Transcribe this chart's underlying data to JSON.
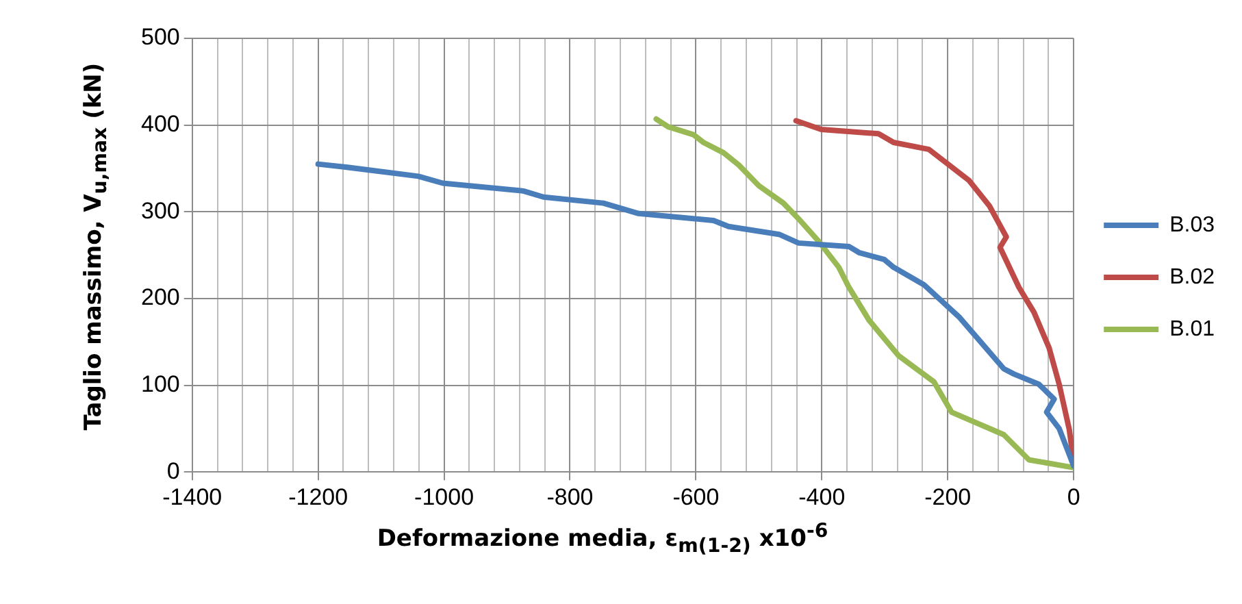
{
  "chart_data": {
    "type": "line",
    "xlabel": "Deformazione media, ε$_{m(1-2)}$ x10$^{-6}$",
    "ylabel": "Taglio massimo, V$_{u,max}$ (kN)",
    "xlim": [
      -1400,
      0
    ],
    "xticks": [
      -1400,
      {
        "value": -1360,
        "label": null
      },
      {
        "value": -1320,
        "label": null
      },
      {
        "value": -1280,
        "label": null
      },
      {
        "value": -1240,
        "label": null
      },
      -1200,
      {
        "value": -1160,
        "label": null
      },
      {
        "value": -1120,
        "label": null
      },
      {
        "value": -1080,
        "label": null
      },
      {
        "value": -1040,
        "label": null
      },
      -1000,
      {
        "value": -960,
        "label": null
      },
      {
        "value": -920,
        "label": null
      },
      {
        "value": -880,
        "label": null
      },
      {
        "value": -840,
        "label": null
      },
      -800,
      {
        "value": -760,
        "label": null
      },
      {
        "value": -720,
        "label": null
      },
      {
        "value": -680,
        "label": null
      },
      {
        "value": -640,
        "label": null
      },
      -600,
      {
        "value": -560,
        "label": null
      },
      {
        "value": -520,
        "label": null
      },
      {
        "value": -480,
        "label": null
      },
      {
        "value": -440,
        "label": null
      },
      -400,
      {
        "value": -360,
        "label": null
      },
      {
        "value": -320,
        "label": null
      },
      {
        "value": -280,
        "label": null
      },
      {
        "value": -240,
        "label": null
      },
      -200,
      {
        "value": -160,
        "label": null
      },
      {
        "value": -120,
        "label": null
      },
      {
        "value": -80,
        "label": null
      },
      {
        "value": -40,
        "label": null
      },
      0
    ],
    "ylim": [
      0,
      500
    ],
    "yticks": [
      0,
      100,
      200,
      300,
      400,
      500
    ],
    "grid": true,
    "legend": "right",
    "marker": "none",
    "line_style": "solid",
    "series": [
      {
        "name": "B.03",
        "color": "#4a7ebb",
        "x": [
          -1200,
          -1161,
          -1041,
          -1002,
          -874,
          -842,
          -747,
          -691,
          -572,
          -548,
          -468,
          -437,
          -357,
          -341,
          -301,
          -286,
          -238,
          -181,
          -111,
          -95,
          -55,
          -31,
          -43,
          -23,
          0
        ],
        "values": [
          355,
          352,
          341,
          333,
          324,
          317,
          310,
          298,
          290,
          283,
          274,
          264,
          260,
          253,
          245,
          236,
          216,
          178,
          119,
          113,
          101,
          84,
          69,
          50,
          7
        ]
      },
      {
        "name": "B.02",
        "color": "#be4b48",
        "x": [
          -441,
          -401,
          -310,
          -286,
          -230,
          -198,
          -166,
          -134,
          -107,
          -117,
          -87,
          -63,
          -39,
          -23,
          -7,
          0
        ],
        "values": [
          405,
          395,
          390,
          380,
          372,
          354,
          336,
          307,
          271,
          259,
          213,
          184,
          143,
          101,
          49,
          11
        ]
      },
      {
        "name": "B.01",
        "color": "#98b954",
        "x": [
          -663,
          -644,
          -604,
          -588,
          -556,
          -532,
          -500,
          -461,
          -437,
          -405,
          -373,
          -357,
          -325,
          -278,
          -222,
          -194,
          -111,
          -71,
          0
        ],
        "values": [
          407,
          398,
          389,
          380,
          368,
          354,
          330,
          310,
          292,
          266,
          236,
          213,
          175,
          134,
          104,
          69,
          43,
          14,
          5
        ]
      }
    ]
  }
}
